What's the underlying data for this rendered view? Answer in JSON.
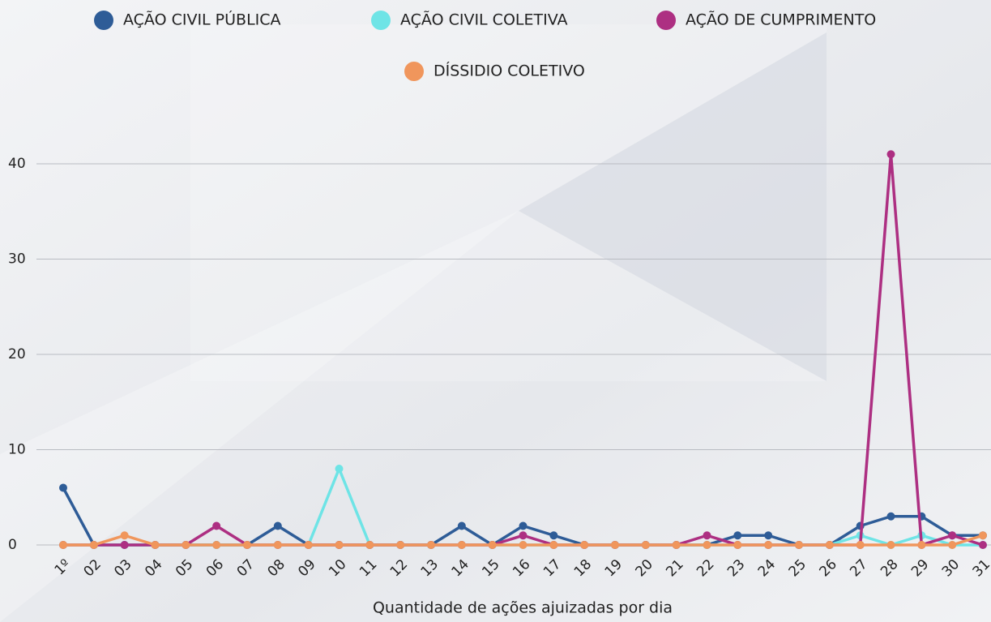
{
  "chart_data": {
    "type": "line",
    "x_label": "Quantidade de ações ajuizadas por dia",
    "categories": [
      "1º",
      "02",
      "03",
      "04",
      "05",
      "06",
      "07",
      "08",
      "09",
      "10",
      "11",
      "12",
      "13",
      "14",
      "15",
      "16",
      "17",
      "18",
      "19",
      "20",
      "21",
      "22",
      "23",
      "24",
      "25",
      "26",
      "27",
      "28",
      "29",
      "30",
      "31"
    ],
    "series": [
      {
        "name": "AÇÃO CIVIL PÚBLICA",
        "color": "#2e5c97",
        "values": [
          6,
          0,
          0,
          0,
          0,
          0,
          0,
          2,
          0,
          0,
          0,
          0,
          0,
          2,
          0,
          2,
          1,
          0,
          0,
          0,
          0,
          0,
          1,
          1,
          0,
          0,
          2,
          3,
          3,
          1,
          1
        ]
      },
      {
        "name": "AÇÃO CIVIL COLETIVA",
        "color": "#6ee4e6",
        "values": [
          0,
          0,
          0,
          0,
          0,
          0,
          0,
          0,
          0,
          8,
          0,
          0,
          0,
          0,
          0,
          0,
          0,
          0,
          0,
          0,
          0,
          0,
          0,
          0,
          0,
          0,
          1,
          0,
          1,
          0,
          0
        ]
      },
      {
        "name": "AÇÃO DE CUMPRIMENTO",
        "color": "#ad2f82",
        "values": [
          0,
          0,
          0,
          0,
          0,
          2,
          0,
          0,
          0,
          0,
          0,
          0,
          0,
          0,
          0,
          1,
          0,
          0,
          0,
          0,
          0,
          1,
          0,
          0,
          0,
          0,
          0,
          41,
          0,
          1,
          0
        ]
      },
      {
        "name": "DÍSSIDIO COLETIVO",
        "color": "#f0965c",
        "values": [
          0,
          0,
          1,
          0,
          0,
          0,
          0,
          0,
          0,
          0,
          0,
          0,
          0,
          0,
          0,
          0,
          0,
          0,
          0,
          0,
          0,
          0,
          0,
          0,
          0,
          0,
          0,
          0,
          0,
          0,
          1
        ]
      }
    ],
    "ylim": [
      0,
      40
    ],
    "yticks": [
      0,
      10,
      20,
      30,
      40
    ],
    "grid": true
  }
}
